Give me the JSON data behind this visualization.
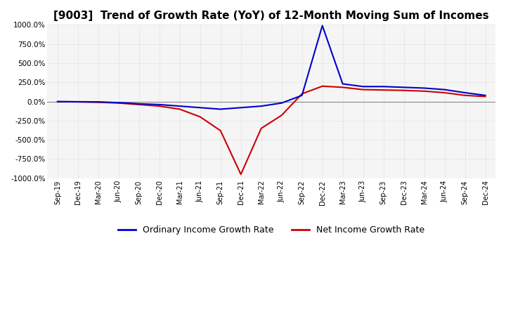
{
  "title": "[9003]  Trend of Growth Rate (YoY) of 12-Month Moving Sum of Incomes",
  "title_fontsize": 11,
  "ylim": [
    -1000,
    1000
  ],
  "yticks": [
    -1000,
    -750,
    -500,
    -250,
    0,
    250,
    500,
    750,
    1000
  ],
  "ytick_labels": [
    "-1000.0%",
    "-750.0%",
    "-500.0%",
    "-250.0%",
    "0.0%",
    "250.0%",
    "500.0%",
    "750.0%",
    "1000.0%"
  ],
  "background_color": "#ffffff",
  "plot_background": "#f5f5f5",
  "grid_color": "#cccccc",
  "ordinary_color": "#0000cc",
  "net_color": "#cc0000",
  "legend_labels": [
    "Ordinary Income Growth Rate",
    "Net Income Growth Rate"
  ],
  "x_labels": [
    "Sep-19",
    "Dec-19",
    "Mar-20",
    "Jun-20",
    "Sep-20",
    "Dec-20",
    "Mar-21",
    "Jun-21",
    "Sep-21",
    "Dec-21",
    "Mar-22",
    "Jun-22",
    "Sep-22",
    "Dec-22",
    "Mar-23",
    "Jun-23",
    "Sep-23",
    "Dec-23",
    "Mar-24",
    "Jun-24",
    "Sep-24",
    "Dec-24"
  ],
  "ordinary_values": [
    -2,
    -3,
    -5,
    -15,
    -30,
    -40,
    -60,
    -80,
    -100,
    -80,
    -60,
    -20,
    80,
    990,
    230,
    195,
    195,
    185,
    175,
    155,
    115,
    80
  ],
  "net_values": [
    -2,
    -5,
    -10,
    -20,
    -40,
    -60,
    -100,
    -200,
    -380,
    -950,
    -350,
    -180,
    100,
    200,
    185,
    155,
    150,
    145,
    135,
    115,
    80,
    65
  ]
}
